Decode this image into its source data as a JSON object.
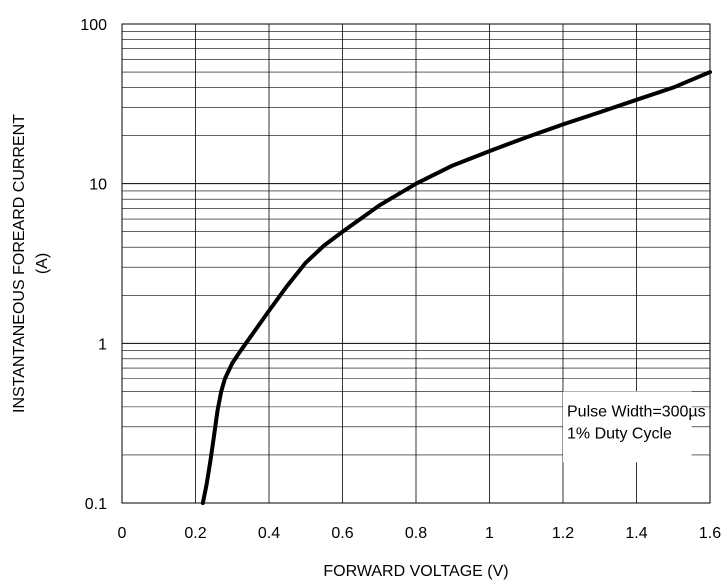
{
  "chart_data": {
    "type": "line",
    "title": "",
    "xlabel": "FORWARD VOLTAGE (V)",
    "ylabel_line1": "INSTANTANEOUS FOREARD CURRENT",
    "ylabel_line2": "(A)",
    "xlim": [
      0,
      1.6
    ],
    "ylim": [
      0.1,
      100
    ],
    "y_scale": "log",
    "grid": true,
    "x_ticks": [
      "0",
      "0.2",
      "0.4",
      "0.6",
      "0.8",
      "1",
      "1.2",
      "1.4",
      "1.6"
    ],
    "y_ticks": [
      "0.1",
      "1",
      "10",
      "100"
    ],
    "series": [
      {
        "color": "#000000",
        "x": [
          0.22,
          0.23,
          0.24,
          0.25,
          0.26,
          0.27,
          0.28,
          0.3,
          0.32,
          0.35,
          0.4,
          0.45,
          0.5,
          0.55,
          0.6,
          0.7,
          0.8,
          0.9,
          1.0,
          1.1,
          1.2,
          1.3,
          1.4,
          1.5,
          1.6
        ],
        "y": [
          0.1,
          0.13,
          0.18,
          0.26,
          0.38,
          0.5,
          0.6,
          0.75,
          0.88,
          1.1,
          1.6,
          2.3,
          3.2,
          4.1,
          5.0,
          7.3,
          10.0,
          13.0,
          16.0,
          19.5,
          23.5,
          28.0,
          33.5,
          40.0,
          50.0
        ]
      }
    ],
    "annotation_lines": [
      "Pulse Width=300µs",
      "1% Duty Cycle"
    ],
    "annotation_box_x": [
      1.2,
      1.55
    ],
    "annotation_box_y": [
      0.18,
      0.5
    ]
  }
}
